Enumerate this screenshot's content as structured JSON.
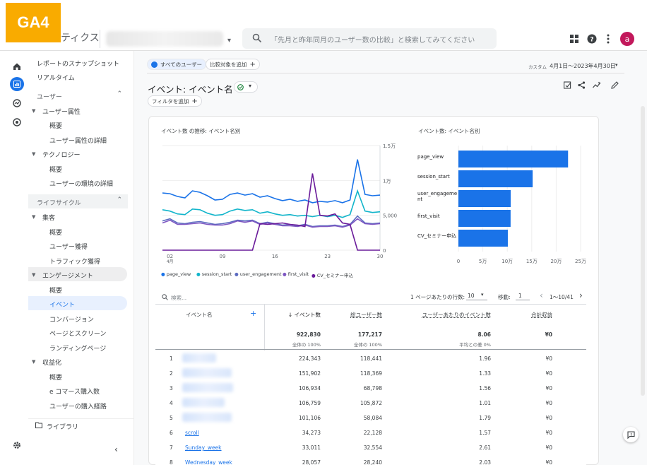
{
  "badge": "GA4",
  "app_name": "ティクス",
  "search": {
    "placeholder": "「先月と昨年同月のユーザー数の比較」と検索してみてください"
  },
  "avatar": "a",
  "nav": {
    "snapshot": "レポートのスナップショット",
    "realtime": "リアルタイム",
    "user_section": "ユーザー",
    "user_attr": "ユーザー属性",
    "overview1": "概要",
    "user_attr_detail": "ユーザー属性の詳細",
    "tech": "テクノロジー",
    "overview2": "概要",
    "tech_detail": "ユーザーの環境の詳細",
    "lifecycle": "ライフサイクル",
    "acquisition": "集客",
    "overview3": "概要",
    "user_acq": "ユーザー獲得",
    "traffic_acq": "トラフィック獲得",
    "engagement": "エンゲージメント",
    "overview4": "概要",
    "events": "イベント",
    "conversions": "コンバージョン",
    "pages": "ページとスクリーン",
    "landing": "ランディングページ",
    "monetization": "収益化",
    "overview5": "概要",
    "ecommerce": "e コマース購入数",
    "purchase_path": "ユーザーの購入経路",
    "library": "ライブラリ"
  },
  "main": {
    "all_users": "すべてのユーザー",
    "add_compare": "比較対象を追加",
    "date_label": "カスタム",
    "date_range": "4月1日～2023年4月30日",
    "title": "イベント: イベント名",
    "add_filter": "フィルタを追加"
  },
  "line_chart": {
    "title": "イベント数 の推移: イベント名別",
    "y_ticks": [
      "1.5万",
      "1万",
      "5,000",
      "0"
    ],
    "x_ticks": [
      "02",
      "09",
      "16",
      "23",
      "30"
    ],
    "x_sub": "4月",
    "legend": [
      "page_view",
      "session_start",
      "user_engagement",
      "first_visit",
      "CV_セミナー申込"
    ]
  },
  "bar_chart": {
    "title": "イベント数: イベント名別",
    "x_ticks": [
      "0",
      "5万",
      "10万",
      "15万",
      "20万",
      "25万"
    ]
  },
  "table": {
    "search_placeholder": "検索...",
    "rows_per_page_label": "1 ページあたりの行数:",
    "rows_per_page": "10",
    "goto_label": "移動:",
    "goto_value": "1",
    "pagination": "1～10/41",
    "headers": [
      "イベント名",
      "↓ イベント数",
      "総ユーザー数",
      "ユーザーあたりのイベント数",
      "合計収益"
    ],
    "totals": [
      "922,830",
      "177,217",
      "8.06",
      "¥0"
    ],
    "totals_sub": [
      "全体の 100%",
      "全体の 100%",
      "平均との差 0%"
    ],
    "rows": [
      {
        "idx": "1",
        "name": "",
        "events": "224,343",
        "users": "118,441",
        "per_user": "1.96",
        "revenue": "¥0"
      },
      {
        "idx": "2",
        "name": "",
        "events": "151,902",
        "users": "118,369",
        "per_user": "1.33",
        "revenue": "¥0"
      },
      {
        "idx": "3",
        "name": "",
        "events": "106,934",
        "users": "68,798",
        "per_user": "1.56",
        "revenue": "¥0"
      },
      {
        "idx": "4",
        "name": "",
        "events": "106,759",
        "users": "105,872",
        "per_user": "1.01",
        "revenue": "¥0"
      },
      {
        "idx": "5",
        "name": "",
        "events": "101,106",
        "users": "58,084",
        "per_user": "1.79",
        "revenue": "¥0"
      },
      {
        "idx": "6",
        "name": "scroll",
        "events": "34,273",
        "users": "22,128",
        "per_user": "1.57",
        "revenue": "¥0"
      },
      {
        "idx": "7",
        "name": "Sunday_week",
        "events": "33,011",
        "users": "32,554",
        "per_user": "2.61",
        "revenue": "¥0"
      },
      {
        "idx": "8",
        "name": "Wednesday_week",
        "events": "28,057",
        "users": "28,240",
        "per_user": "2.03",
        "revenue": "¥0"
      }
    ]
  },
  "chart_data": [
    {
      "type": "line",
      "title": "イベント数 の推移: イベント名別",
      "x": [
        1,
        2,
        3,
        4,
        5,
        6,
        7,
        8,
        9,
        10,
        11,
        12,
        13,
        14,
        15,
        16,
        17,
        18,
        19,
        20,
        21,
        22,
        23,
        24,
        25,
        26,
        27,
        28,
        29,
        30
      ],
      "ylim": [
        0,
        15000
      ],
      "series": [
        {
          "name": "page_view",
          "color": "#1a73e8",
          "values": [
            8200,
            8100,
            7700,
            7500,
            8500,
            8300,
            7800,
            7200,
            7300,
            8000,
            8200,
            7900,
            8100,
            7600,
            7800,
            7400,
            7100,
            7300,
            7000,
            7200,
            6800,
            7000,
            6900,
            7100,
            6800,
            7200,
            13000,
            8000,
            7800,
            7900
          ]
        },
        {
          "name": "session_start",
          "color": "#12b5cb",
          "values": [
            5800,
            5600,
            5200,
            5100,
            5900,
            5800,
            5300,
            5000,
            5100,
            5600,
            5900,
            5700,
            5800,
            5300,
            5500,
            5200,
            5000,
            5100,
            4900,
            5000,
            4800,
            5000,
            4800,
            5000,
            4700,
            5100,
            8500,
            5600,
            5400,
            5500
          ]
        },
        {
          "name": "user_engagement",
          "color": "#5c6bc0",
          "values": [
            4200,
            4500,
            3900,
            3800,
            4000,
            4100,
            3900,
            3700,
            3800,
            4000,
            4300,
            4200,
            4300,
            3800,
            4000,
            3800,
            3600,
            3700,
            3500,
            3700,
            3400,
            3500,
            3500,
            3600,
            3400,
            3700,
            4900,
            3900,
            3800,
            3900
          ]
        },
        {
          "name": "first_visit",
          "color": "#7e57c2",
          "values": [
            3900,
            4300,
            3700,
            3700,
            3800,
            3900,
            3700,
            3600,
            3600,
            3800,
            4200,
            4000,
            4200,
            3700,
            3900,
            3700,
            3500,
            3500,
            3400,
            3600,
            3300,
            3400,
            3400,
            3500,
            3300,
            3600,
            4500,
            3800,
            3700,
            3800
          ]
        },
        {
          "name": "CV_セミナー申込",
          "color": "#6a1b9a",
          "values": [
            0,
            0,
            0,
            0,
            0,
            0,
            0,
            0,
            0,
            0,
            0,
            0,
            0,
            3800,
            3700,
            3800,
            3900,
            3700,
            3600,
            3400,
            11000,
            5000,
            4900,
            5200,
            3900,
            3700,
            0,
            0,
            0,
            0
          ]
        }
      ]
    },
    {
      "type": "bar",
      "title": "イベント数: イベント名別",
      "categories": [
        "page_view",
        "session_start",
        "user_engageme nt",
        "first_visit",
        "CV_セミナー申込"
      ],
      "values": [
        224343,
        151902,
        106934,
        106759,
        101106
      ],
      "xlim": [
        0,
        250000
      ],
      "color": "#1a73e8"
    }
  ]
}
